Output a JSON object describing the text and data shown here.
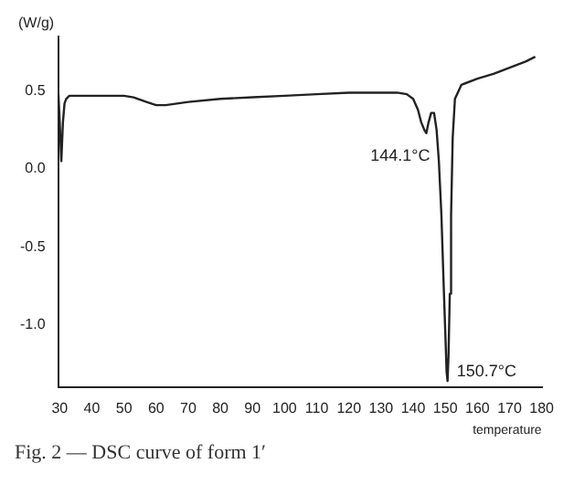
{
  "chart_data": {
    "type": "line",
    "ylabel": "(W/g)",
    "xlabel": "temperature",
    "color": "#222222",
    "x": [
      29.6,
      30,
      30.5,
      31,
      31.5,
      32,
      33,
      40,
      50,
      53,
      57,
      60,
      63,
      70,
      80,
      90,
      100,
      110,
      120,
      130,
      135,
      138,
      140,
      141.5,
      142.5,
      143.5,
      144.1,
      144.8,
      145.6,
      146.5,
      147.3,
      148,
      148.8,
      149.5,
      150,
      150.4,
      150.7,
      151,
      151.4,
      151.8,
      152.3,
      153,
      155,
      160,
      165,
      170,
      175,
      178
    ],
    "values": [
      0.48,
      0.3,
      0.05,
      0.3,
      0.42,
      0.45,
      0.47,
      0.47,
      0.47,
      0.46,
      0.43,
      0.41,
      0.41,
      0.43,
      0.45,
      0.46,
      0.47,
      0.48,
      0.49,
      0.49,
      0.49,
      0.48,
      0.45,
      0.38,
      0.3,
      0.25,
      0.23,
      0.3,
      0.36,
      0.36,
      0.25,
      0.05,
      -0.3,
      -0.75,
      -1.05,
      -1.3,
      -1.36,
      -1.2,
      -0.8,
      -0.3,
      0.2,
      0.45,
      0.54,
      0.58,
      0.61,
      0.65,
      0.69,
      0.72
    ],
    "xlim": [
      29.5,
      180
    ],
    "xticks": [
      30,
      40,
      50,
      60,
      70,
      80,
      90,
      100,
      110,
      120,
      130,
      140,
      150,
      160,
      170,
      180
    ],
    "ylim": [
      -1.4,
      0.85
    ],
    "yticks": [
      {
        "value": 0.5,
        "label": "0.5"
      },
      {
        "value": 0,
        "label": "0.0"
      },
      {
        "value": -0.5,
        "label": "-0.5"
      },
      {
        "value": -1,
        "label": "-1.0"
      }
    ],
    "grid": false,
    "legend": false,
    "marker": "none",
    "line_style": "solid",
    "annotations": [
      {
        "text": "144.1°C",
        "x": 144.1,
        "y": 0.23
      },
      {
        "text": "150.7°C",
        "x": 150.7,
        "y": -1.36
      },
      "Fig. 2 — DSC curve of form 1′"
    ]
  }
}
